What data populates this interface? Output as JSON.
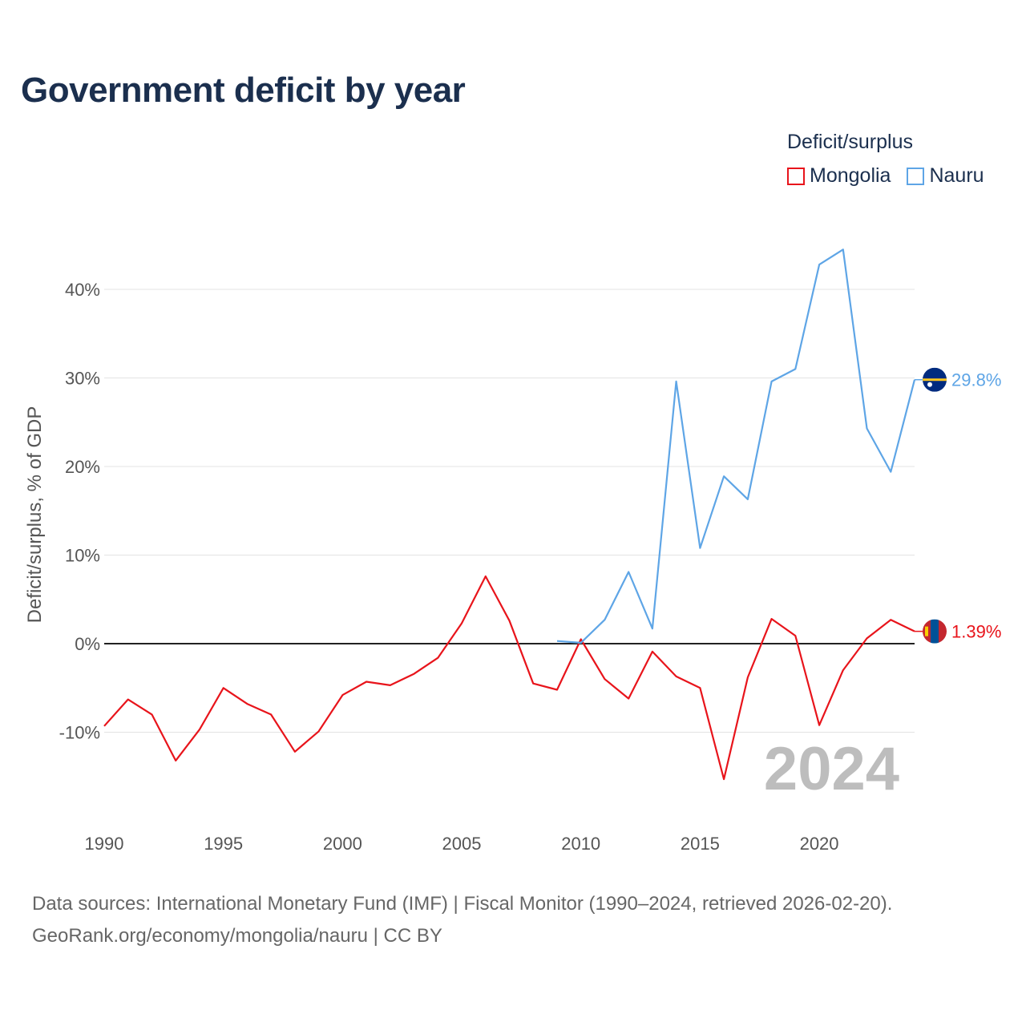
{
  "title": "Government deficit by year",
  "legend_title": "Deficit/surplus",
  "source_line1": "Data sources: International Monetary Fund (IMF) | Fiscal Monitor (1990–2024, retrieved 2026-02-20).",
  "source_line2": "GeoRank.org/economy/mongolia/nauru | CC BY",
  "chart_data": {
    "type": "line",
    "title": "Government deficit by year",
    "xlabel": "",
    "ylabel": "Deficit/surplus, % of GDP",
    "xlim": [
      1990,
      2024
    ],
    "ylim": [
      -19,
      48
    ],
    "x_ticks": [
      1990,
      1995,
      2000,
      2005,
      2010,
      2015,
      2020
    ],
    "x_tick_labels": [
      "1990",
      "1995",
      "2000",
      "2005",
      "2010",
      "2015",
      "2020"
    ],
    "y_ticks": [
      -10,
      0,
      10,
      20,
      30,
      40
    ],
    "y_tick_labels": [
      "-10%",
      "0%",
      "10%",
      "20%",
      "30%",
      "40%"
    ],
    "year_label": "2024",
    "series": [
      {
        "name": "Mongolia",
        "color": "#e8141b",
        "end_label": "1.39%",
        "flag_icon": "mongolia-flag-icon",
        "x": [
          1990,
          1991,
          1992,
          1993,
          1994,
          1995,
          1996,
          1997,
          1998,
          1999,
          2000,
          2001,
          2002,
          2003,
          2004,
          2005,
          2006,
          2007,
          2008,
          2009,
          2010,
          2011,
          2012,
          2013,
          2014,
          2015,
          2016,
          2017,
          2018,
          2019,
          2020,
          2021,
          2022,
          2023,
          2024
        ],
        "values": [
          -9.3,
          -6.3,
          -8.0,
          -13.2,
          -9.7,
          -5.0,
          -6.8,
          -8.0,
          -12.2,
          -9.9,
          -5.8,
          -4.3,
          -4.7,
          -3.4,
          -1.6,
          2.3,
          7.6,
          2.6,
          -4.5,
          -5.2,
          0.5,
          -4.0,
          -6.2,
          -0.9,
          -3.7,
          -5.0,
          -15.3,
          -3.8,
          2.8,
          0.9,
          -9.2,
          -3.0,
          0.6,
          2.7,
          1.39
        ]
      },
      {
        "name": "Nauru",
        "color": "#5ea5e6",
        "end_label": "29.8%",
        "flag_icon": "nauru-flag-icon",
        "x": [
          2009,
          2010,
          2011,
          2012,
          2013,
          2014,
          2015,
          2016,
          2017,
          2018,
          2019,
          2020,
          2021,
          2022,
          2023,
          2024
        ],
        "values": [
          0.3,
          0.1,
          2.7,
          8.1,
          1.7,
          29.6,
          10.8,
          18.9,
          16.3,
          29.6,
          31.0,
          42.8,
          44.5,
          24.3,
          19.4,
          29.8
        ]
      }
    ]
  }
}
